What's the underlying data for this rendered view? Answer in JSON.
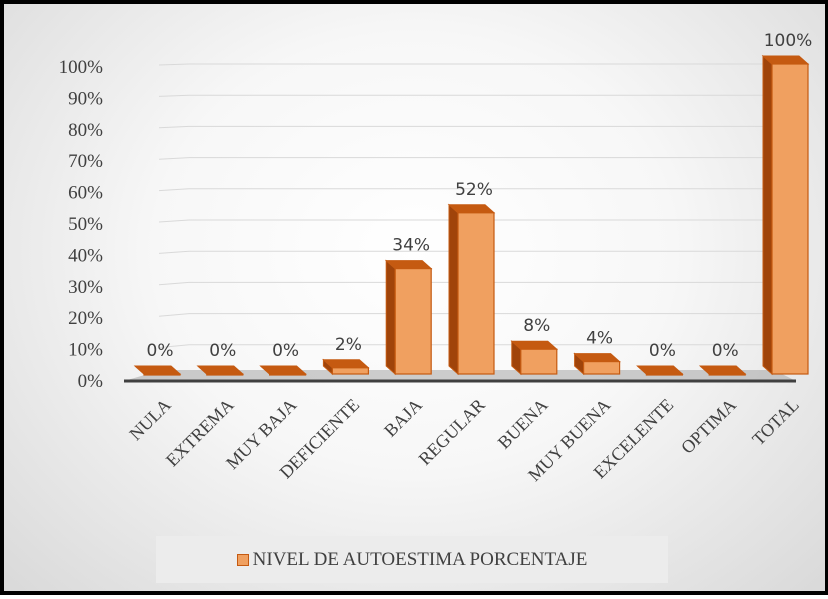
{
  "chart_data": {
    "type": "bar",
    "categories": [
      "NULA",
      "EXTREMA",
      "MUY BAJA",
      "DEFICIENTE",
      "BAJA",
      "REGULAR",
      "BUENA",
      "MUY BUENA",
      "EXCELENTE",
      "OPTIMA",
      "TOTAL"
    ],
    "series": [
      {
        "name": "NIVEL DE AUTOESTIMA PORCENTAJE",
        "values": [
          0,
          0,
          0,
          2,
          34,
          52,
          8,
          4,
          0,
          0,
          100
        ],
        "data_labels": [
          "0%",
          "0%",
          "0%",
          "2%",
          "34%",
          "52%",
          "8%",
          "4%",
          "0%",
          "0%",
          "100%"
        ]
      }
    ],
    "y_ticks": [
      "0%",
      "10%",
      "20%",
      "30%",
      "40%",
      "50%",
      "60%",
      "70%",
      "80%",
      "90%",
      "100%"
    ],
    "ylim": [
      0,
      100
    ],
    "grid": true,
    "legend_position": "bottom",
    "style": "3d-column",
    "colors": {
      "bar_face": "#f0a060",
      "bar_side": "#a0440a",
      "bar_top": "#c55a11",
      "floor": "#a6a6a6",
      "axis": "#404040"
    }
  }
}
